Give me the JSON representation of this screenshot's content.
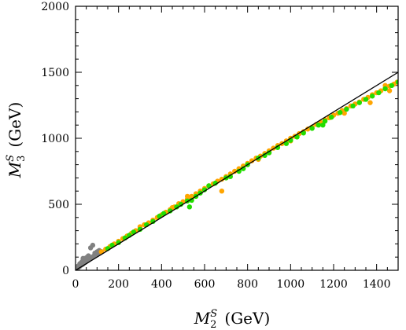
{
  "chart_data": {
    "type": "scatter",
    "title": "",
    "xlabel": {
      "main": "M",
      "sup": "S",
      "sub": "2",
      "unit": "(GeV)"
    },
    "ylabel": {
      "main": "M",
      "sup": "S",
      "sub": "3",
      "unit": "(GeV)"
    },
    "xlim": [
      0,
      1500
    ],
    "ylim": [
      0,
      2000
    ],
    "x_ticks": [
      0,
      200,
      400,
      600,
      800,
      1000,
      1200,
      1400
    ],
    "x_tick_labels": [
      "0",
      "200",
      "400",
      "600",
      "800",
      "1000",
      "1200",
      "1400"
    ],
    "y_ticks": [
      0,
      500,
      1000,
      1500,
      2000
    ],
    "y_tick_labels": [
      "0",
      "500",
      "1000",
      "1500",
      "2000"
    ],
    "grid": false,
    "legend": "none",
    "reference_line": {
      "x": [
        0,
        1500
      ],
      "y": [
        0,
        1500
      ],
      "color": "#000000"
    },
    "series": [
      {
        "color": "#808080",
        "points": [
          [
            2,
            5
          ],
          [
            5,
            10
          ],
          [
            8,
            15
          ],
          [
            12,
            20
          ],
          [
            15,
            25
          ],
          [
            20,
            30
          ],
          [
            25,
            38
          ],
          [
            30,
            42
          ],
          [
            35,
            48
          ],
          [
            40,
            55
          ],
          [
            45,
            60
          ],
          [
            50,
            66
          ],
          [
            55,
            72
          ],
          [
            60,
            78
          ],
          [
            65,
            84
          ],
          [
            70,
            90
          ],
          [
            75,
            96
          ],
          [
            80,
            102
          ],
          [
            85,
            108
          ],
          [
            90,
            114
          ],
          [
            95,
            118
          ],
          [
            100,
            125
          ],
          [
            105,
            130
          ],
          [
            110,
            134
          ],
          [
            115,
            138
          ],
          [
            120,
            142
          ],
          [
            20,
            50
          ],
          [
            30,
            65
          ],
          [
            40,
            80
          ],
          [
            50,
            95
          ],
          [
            60,
            110
          ],
          [
            70,
            170
          ],
          [
            80,
            190
          ],
          [
            10,
            30
          ],
          [
            35,
            90
          ],
          [
            45,
            70
          ],
          [
            90,
            130
          ],
          [
            100,
            140
          ],
          [
            110,
            150
          ],
          [
            25,
            55
          ],
          [
            55,
            100
          ]
        ]
      },
      {
        "color": "#ffa500",
        "points": [
          [
            120,
            140
          ],
          [
            140,
            160
          ],
          [
            160,
            180
          ],
          [
            180,
            200
          ],
          [
            200,
            220
          ],
          [
            220,
            240
          ],
          [
            240,
            260
          ],
          [
            260,
            280
          ],
          [
            280,
            300
          ],
          [
            300,
            320
          ],
          [
            320,
            345
          ],
          [
            340,
            360
          ],
          [
            360,
            380
          ],
          [
            380,
            400
          ],
          [
            400,
            420
          ],
          [
            420,
            440
          ],
          [
            440,
            460
          ],
          [
            460,
            480
          ],
          [
            480,
            505
          ],
          [
            500,
            520
          ],
          [
            520,
            540
          ],
          [
            540,
            560
          ],
          [
            560,
            580
          ],
          [
            580,
            600
          ],
          [
            600,
            620
          ],
          [
            620,
            640
          ],
          [
            640,
            655
          ],
          [
            660,
            675
          ],
          [
            680,
            690
          ],
          [
            700,
            710
          ],
          [
            720,
            730
          ],
          [
            740,
            750
          ],
          [
            760,
            770
          ],
          [
            780,
            790
          ],
          [
            800,
            810
          ],
          [
            820,
            830
          ],
          [
            840,
            850
          ],
          [
            860,
            865
          ],
          [
            880,
            885
          ],
          [
            900,
            905
          ],
          [
            920,
            925
          ],
          [
            940,
            945
          ],
          [
            960,
            960
          ],
          [
            980,
            980
          ],
          [
            1000,
            1000
          ],
          [
            1020,
            1015
          ],
          [
            1040,
            1035
          ],
          [
            1060,
            1050
          ],
          [
            1080,
            1070
          ],
          [
            1100,
            1085
          ],
          [
            1120,
            1105
          ],
          [
            1140,
            1120
          ],
          [
            1160,
            1140
          ],
          [
            1180,
            1155
          ],
          [
            1200,
            1175
          ],
          [
            1220,
            1190
          ],
          [
            1240,
            1210
          ],
          [
            1260,
            1225
          ],
          [
            1280,
            1245
          ],
          [
            1300,
            1260
          ],
          [
            1320,
            1275
          ],
          [
            1340,
            1295
          ],
          [
            1360,
            1310
          ],
          [
            1380,
            1330
          ],
          [
            1400,
            1345
          ],
          [
            1420,
            1360
          ],
          [
            1440,
            1380
          ],
          [
            1460,
            1395
          ],
          [
            1480,
            1410
          ],
          [
            1495,
            1425
          ],
          [
            520,
            560
          ],
          [
            540,
            545
          ],
          [
            680,
            600
          ],
          [
            1370,
            1270
          ],
          [
            1440,
            1400
          ],
          [
            1460,
            1360
          ],
          [
            450,
            475
          ],
          [
            700,
            700
          ],
          [
            850,
            840
          ],
          [
            1000,
            980
          ],
          [
            1150,
            1110
          ],
          [
            1250,
            1190
          ],
          [
            300,
            330
          ],
          [
            600,
            615
          ],
          [
            900,
            890
          ]
        ]
      },
      {
        "color": "#22dd00",
        "points": [
          [
            150,
            165
          ],
          [
            170,
            190
          ],
          [
            200,
            210
          ],
          [
            230,
            245
          ],
          [
            250,
            265
          ],
          [
            270,
            290
          ],
          [
            300,
            310
          ],
          [
            330,
            345
          ],
          [
            360,
            370
          ],
          [
            390,
            410
          ],
          [
            410,
            430
          ],
          [
            440,
            450
          ],
          [
            470,
            480
          ],
          [
            490,
            500
          ],
          [
            520,
            525
          ],
          [
            540,
            530
          ],
          [
            560,
            560
          ],
          [
            580,
            585
          ],
          [
            600,
            610
          ],
          [
            650,
            660
          ],
          [
            700,
            700
          ],
          [
            720,
            710
          ],
          [
            760,
            750
          ],
          [
            780,
            770
          ],
          [
            800,
            800
          ],
          [
            850,
            850
          ],
          [
            880,
            870
          ],
          [
            900,
            890
          ],
          [
            940,
            930
          ],
          [
            980,
            960
          ],
          [
            1000,
            985
          ],
          [
            1030,
            1010
          ],
          [
            1060,
            1040
          ],
          [
            1100,
            1075
          ],
          [
            1130,
            1100
          ],
          [
            1160,
            1130
          ],
          [
            1190,
            1160
          ],
          [
            1230,
            1195
          ],
          [
            1260,
            1220
          ],
          [
            1290,
            1245
          ],
          [
            1320,
            1270
          ],
          [
            1350,
            1295
          ],
          [
            1380,
            1320
          ],
          [
            1410,
            1345
          ],
          [
            1440,
            1375
          ],
          [
            1470,
            1400
          ],
          [
            1500,
            1425
          ],
          [
            530,
            480
          ],
          [
            620,
            640
          ],
          [
            1150,
            1100
          ]
        ]
      }
    ]
  }
}
